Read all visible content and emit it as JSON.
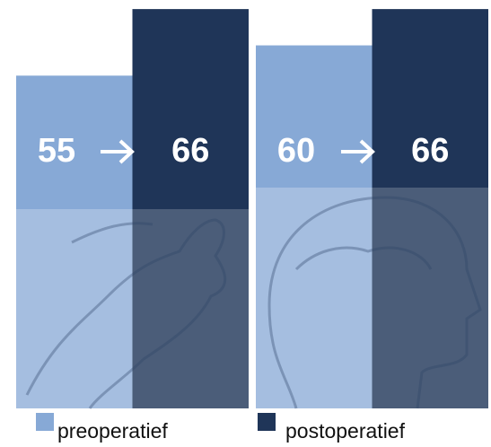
{
  "chart_data": {
    "type": "bar",
    "categories": [
      null,
      null
    ],
    "series": [
      {
        "name": "preoperatief",
        "color": "#87a9d6",
        "values": [
          55,
          60
        ]
      },
      {
        "name": "postoperatief",
        "color": "#1f3558",
        "values": [
          66,
          66
        ]
      }
    ],
    "ylim": [
      0,
      67.5
    ]
  }
}
